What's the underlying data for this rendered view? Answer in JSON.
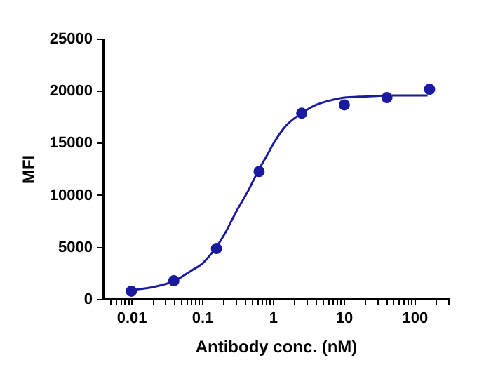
{
  "chart_data": {
    "type": "scatter",
    "xlabel": "Antibody conc. (nM)",
    "ylabel": "MFI",
    "log": "x",
    "grid": false,
    "legend": false,
    "marker": "circle",
    "xlim": [
      0.004,
      300
    ],
    "ylim": [
      0,
      25000
    ],
    "xticks": [
      {
        "value": 0.005,
        "label": null
      },
      {
        "value": 0.006,
        "label": null
      },
      {
        "value": 0.007,
        "label": null
      },
      {
        "value": 0.008,
        "label": null
      },
      {
        "value": 0.009,
        "label": null
      },
      0.01,
      {
        "value": 0.02,
        "label": null
      },
      {
        "value": 0.03,
        "label": null
      },
      {
        "value": 0.04,
        "label": null
      },
      {
        "value": 0.05,
        "label": null
      },
      {
        "value": 0.06,
        "label": null
      },
      {
        "value": 0.07,
        "label": null
      },
      {
        "value": 0.08,
        "label": null
      },
      {
        "value": 0.09,
        "label": null
      },
      0.1,
      {
        "value": 0.2,
        "label": null
      },
      {
        "value": 0.3,
        "label": null
      },
      {
        "value": 0.4,
        "label": null
      },
      {
        "value": 0.5,
        "label": null
      },
      {
        "value": 0.6,
        "label": null
      },
      {
        "value": 0.7,
        "label": null
      },
      {
        "value": 0.8,
        "label": null
      },
      {
        "value": 0.9,
        "label": null
      },
      1,
      {
        "value": 2,
        "label": null
      },
      {
        "value": 3,
        "label": null
      },
      {
        "value": 4,
        "label": null
      },
      {
        "value": 5,
        "label": null
      },
      {
        "value": 6,
        "label": null
      },
      {
        "value": 7,
        "label": null
      },
      {
        "value": 8,
        "label": null
      },
      {
        "value": 9,
        "label": null
      },
      10,
      {
        "value": 20,
        "label": null
      },
      {
        "value": 30,
        "label": null
      },
      {
        "value": 40,
        "label": null
      },
      {
        "value": 50,
        "label": null
      },
      {
        "value": 60,
        "label": null
      },
      {
        "value": 70,
        "label": null
      },
      {
        "value": 80,
        "label": null
      },
      {
        "value": 90,
        "label": null
      },
      100,
      {
        "value": 200,
        "label": null
      },
      {
        "value": 300,
        "label": null
      }
    ],
    "yticks": [
      0,
      5000,
      10000,
      15000,
      20000,
      25000
    ],
    "series": [
      {
        "color": "#1a1aa0",
        "x": [
          0.0098,
          0.039,
          0.156,
          0.625,
          2.5,
          10,
          40,
          160
        ],
        "values": [
          800,
          1800,
          4900,
          12300,
          17900,
          18700,
          19400,
          20200
        ]
      },
      {
        "type": "line",
        "color": "#1a1aa0",
        "marker": "none",
        "line_style": "solid",
        "x": [
          0.01,
          0.02,
          0.04,
          0.07,
          0.1,
          0.15,
          0.2,
          0.3,
          0.45,
          0.6,
          0.8,
          1,
          1.5,
          2.5,
          4,
          7,
          10,
          20,
          50,
          150
        ],
        "values": [
          900,
          1200,
          1800,
          2800,
          3500,
          4900,
          6200,
          8500,
          10600,
          12300,
          13800,
          15000,
          16700,
          17900,
          18700,
          19200,
          19400,
          19500,
          19600,
          19600
        ]
      }
    ]
  }
}
